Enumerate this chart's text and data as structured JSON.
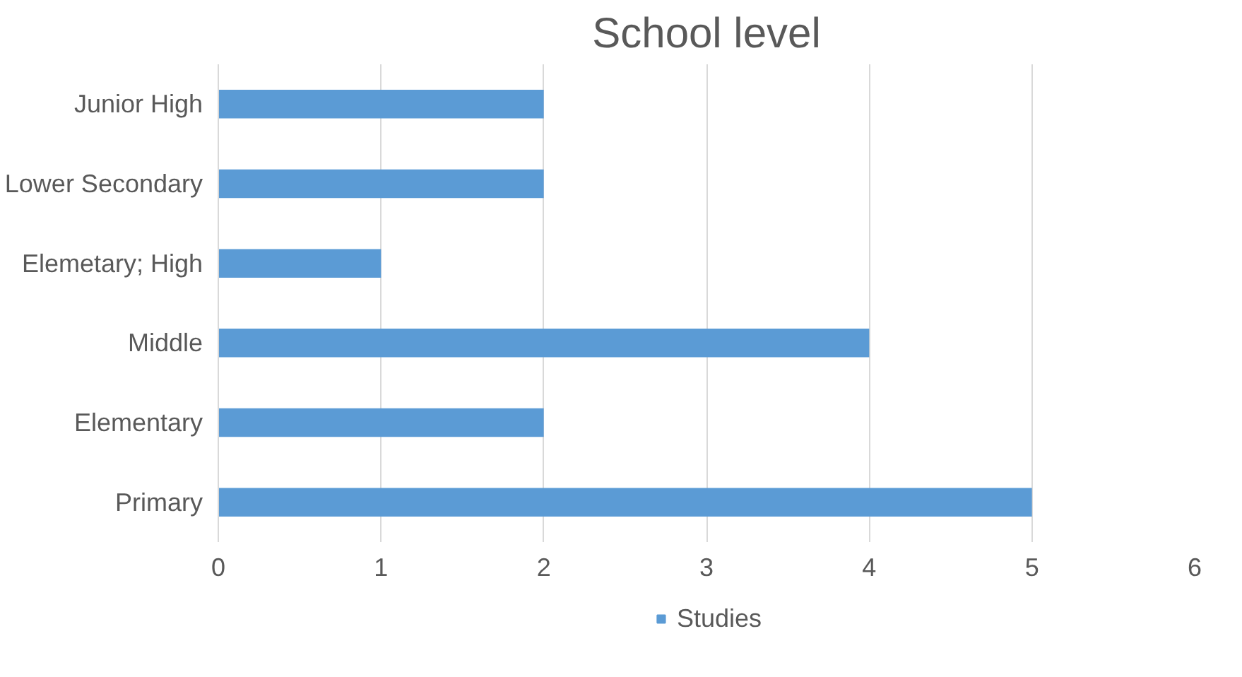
{
  "chart_data": {
    "type": "bar",
    "orientation": "horizontal",
    "title": "School level",
    "categories": [
      "Junior High",
      "Lower Secondary",
      "Elemetary; High",
      "Middle",
      "Elementary",
      "Primary"
    ],
    "series": [
      {
        "name": "Studies",
        "color": "#5b9bd5",
        "values": [
          2,
          2,
          1,
          4,
          2,
          5
        ]
      }
    ],
    "xlim": [
      0,
      6
    ],
    "xticks": [
      0,
      1,
      2,
      3,
      4,
      5,
      6
    ],
    "grid": "x",
    "legend": "bottom"
  }
}
